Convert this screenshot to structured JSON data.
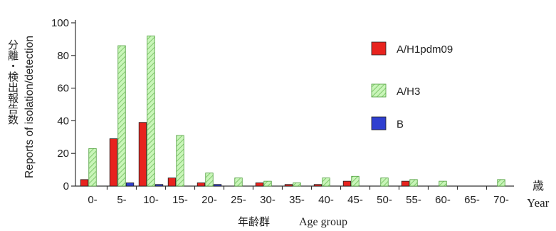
{
  "chart_data": {
    "type": "bar",
    "ylim": [
      0,
      100
    ],
    "yticks": [
      0,
      20,
      40,
      60,
      80,
      100
    ],
    "ylabel_ja": "分離・検出報告数",
    "ylabel_en": "Reports of isolation/detection",
    "xlabel_ja": "年齢群",
    "xlabel_en": "Age group",
    "xunit_ja": "歳",
    "xunit_en": "Year",
    "categories": [
      "0-",
      "5-",
      "10-",
      "15-",
      "20-",
      "25-",
      "30-",
      "35-",
      "40-",
      "45-",
      "50-",
      "55-",
      "60-",
      "65-",
      "70-"
    ],
    "series": [
      {
        "name": "A/H1pdm09",
        "color": "#e8231e",
        "pattern": "solid",
        "values": [
          4,
          29,
          39,
          5,
          2,
          0,
          2,
          1,
          1,
          3,
          0,
          3,
          0,
          0,
          0
        ]
      },
      {
        "name": "A/H3",
        "color": "#b9f0a8",
        "pattern": "hatched",
        "values": [
          23,
          86,
          92,
          31,
          8,
          5,
          3,
          2,
          5,
          6,
          5,
          4,
          3,
          0,
          4
        ]
      },
      {
        "name": "B",
        "color": "#2f3fd0",
        "pattern": "solid",
        "values": [
          0,
          2,
          1,
          0,
          1,
          0,
          0,
          0,
          0,
          0,
          0,
          0,
          0,
          0,
          0
        ]
      }
    ],
    "legend_position": "right",
    "grid": false
  }
}
